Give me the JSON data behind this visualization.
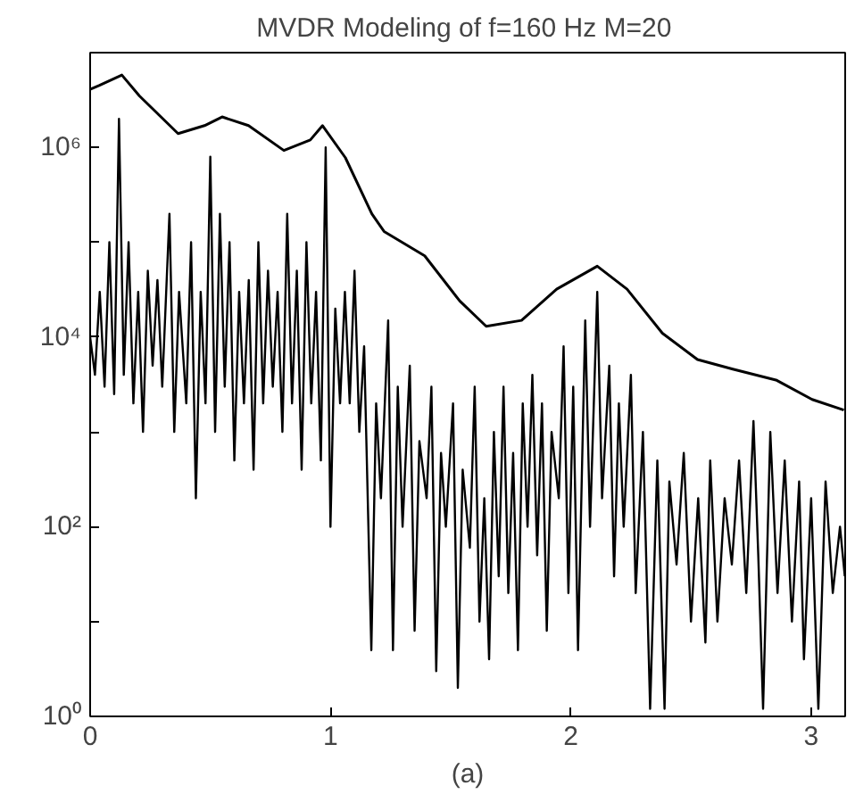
{
  "chart_data": {
    "type": "line",
    "title": "MVDR Modeling of f=160 Hz  M=20",
    "xlabel": "(a)",
    "log": "y",
    "grid": false,
    "xlim": [
      0,
      3.1416
    ],
    "xticks": [
      0,
      1,
      2,
      3
    ],
    "ylim": [
      1,
      10000000
    ],
    "yticks": [
      {
        "value": 1,
        "label": "10⁰"
      },
      {
        "value": 10,
        "label": null
      },
      {
        "value": 100,
        "label": "10²"
      },
      {
        "value": 1000,
        "label": null
      },
      {
        "value": 10000,
        "label": "10⁴"
      },
      {
        "value": 100000,
        "label": null
      },
      {
        "value": 1000000,
        "label": "10⁶"
      }
    ],
    "series": [
      {
        "color": "#000000",
        "x": [
          0.0,
          0.02,
          0.04,
          0.06,
          0.08,
          0.1,
          0.12,
          0.14,
          0.16,
          0.18,
          0.2,
          0.22,
          0.24,
          0.26,
          0.28,
          0.3,
          0.33,
          0.35,
          0.37,
          0.4,
          0.42,
          0.44,
          0.46,
          0.48,
          0.5,
          0.52,
          0.54,
          0.56,
          0.58,
          0.6,
          0.62,
          0.64,
          0.66,
          0.68,
          0.7,
          0.72,
          0.74,
          0.76,
          0.78,
          0.8,
          0.82,
          0.84,
          0.86,
          0.88,
          0.9,
          0.92,
          0.94,
          0.96,
          0.98,
          1.0,
          1.02,
          1.04,
          1.06,
          1.08,
          1.1,
          1.12,
          1.14,
          1.17,
          1.19,
          1.21,
          1.24,
          1.26,
          1.28,
          1.3,
          1.33,
          1.35,
          1.37,
          1.4,
          1.42,
          1.44,
          1.46,
          1.48,
          1.51,
          1.53,
          1.55,
          1.58,
          1.6,
          1.62,
          1.64,
          1.66,
          1.68,
          1.7,
          1.72,
          1.74,
          1.76,
          1.78,
          1.8,
          1.82,
          1.84,
          1.86,
          1.88,
          1.9,
          1.92,
          1.95,
          1.97,
          1.99,
          2.01,
          2.03,
          2.06,
          2.08,
          2.11,
          2.13,
          2.16,
          2.18,
          2.2,
          2.22,
          2.25,
          2.27,
          2.3,
          2.33,
          2.36,
          2.39,
          2.41,
          2.44,
          2.47,
          2.5,
          2.53,
          2.56,
          2.58,
          2.61,
          2.64,
          2.67,
          2.7,
          2.73,
          2.76,
          2.78,
          2.8,
          2.83,
          2.86,
          2.89,
          2.92,
          2.95,
          2.97,
          3.0,
          3.03,
          3.06,
          3.09,
          3.12,
          3.14
        ],
        "values": [
          10000.0,
          4000.0,
          30000.0,
          3000.0,
          100000.0,
          2500.0,
          2000000.0,
          4000.0,
          100000.0,
          2000.0,
          30000.0,
          1000.0,
          50000.0,
          5000.0,
          40000.0,
          3000.0,
          200000.0,
          1000.0,
          30000.0,
          2000.0,
          100000.0,
          200.0,
          30000.0,
          2000.0,
          800000.0,
          1000.0,
          200000.0,
          3000.0,
          100000.0,
          500.0,
          30000.0,
          2000.0,
          40000.0,
          400.0,
          100000.0,
          2000.0,
          50000.0,
          3000.0,
          30000.0,
          1000.0,
          200000.0,
          2000.0,
          50000.0,
          400.0,
          100000.0,
          2000.0,
          30000.0,
          500.0,
          1000000.0,
          100.0,
          20000.0,
          2000.0,
          30000.0,
          2000.0,
          50000.0,
          1000.0,
          8000.0,
          5,
          2000.0,
          200.0,
          15000.0,
          5,
          3000.0,
          100.0,
          5000.0,
          8,
          800.0,
          200.0,
          3000.0,
          3,
          600.0,
          100.0,
          2000.0,
          2,
          400.0,
          60.0,
          3000.0,
          10.0,
          200.0,
          4,
          1000.0,
          30.0,
          3000.0,
          20.0,
          600.0,
          5,
          2000.0,
          100.0,
          4000.0,
          50.0,
          2000.0,
          8,
          1000.0,
          200.0,
          8000.0,
          20.0,
          3000.0,
          5,
          15000.0,
          100.0,
          30000.0,
          200.0,
          5000.0,
          30.0,
          2000.0,
          100.0,
          4000.0,
          20.0,
          1000.0,
          1.2,
          500.0,
          1.2,
          300.0,
          40.0,
          600.0,
          10.0,
          200.0,
          6,
          500.0,
          10.0,
          200.0,
          40.0,
          500.0,
          20.0,
          1300.0,
          50.0,
          1.2,
          1000.0,
          20.0,
          500.0,
          10.0,
          300.0,
          4,
          200.0,
          1.2,
          300.0,
          20.0,
          100.0,
          30.0
        ]
      },
      {
        "color": "#000000",
        "x": [
          0.0,
          0.037,
          0.132,
          0.205,
          0.366,
          0.476,
          0.549,
          0.659,
          0.806,
          0.916,
          0.967,
          1.062,
          1.172,
          1.223,
          1.392,
          1.538,
          1.648,
          1.795,
          1.941,
          2.11,
          2.234,
          2.381,
          2.527,
          2.674,
          2.857,
          3.004,
          3.136
        ],
        "values": [
          4100000.0,
          4500000.0,
          5800000.0,
          3500000.0,
          1400000.0,
          1700000.0,
          2100000.0,
          1700000.0,
          930000.0,
          1200000.0,
          1700000.0,
          780000.0,
          200000.0,
          130000.0,
          72000.0,
          24000.0,
          13000.0,
          15000.0,
          32000.0,
          56000.0,
          32000.0,
          11000.0,
          5800.0,
          4600.0,
          3500.0,
          2200.0,
          1700.0
        ]
      }
    ]
  }
}
